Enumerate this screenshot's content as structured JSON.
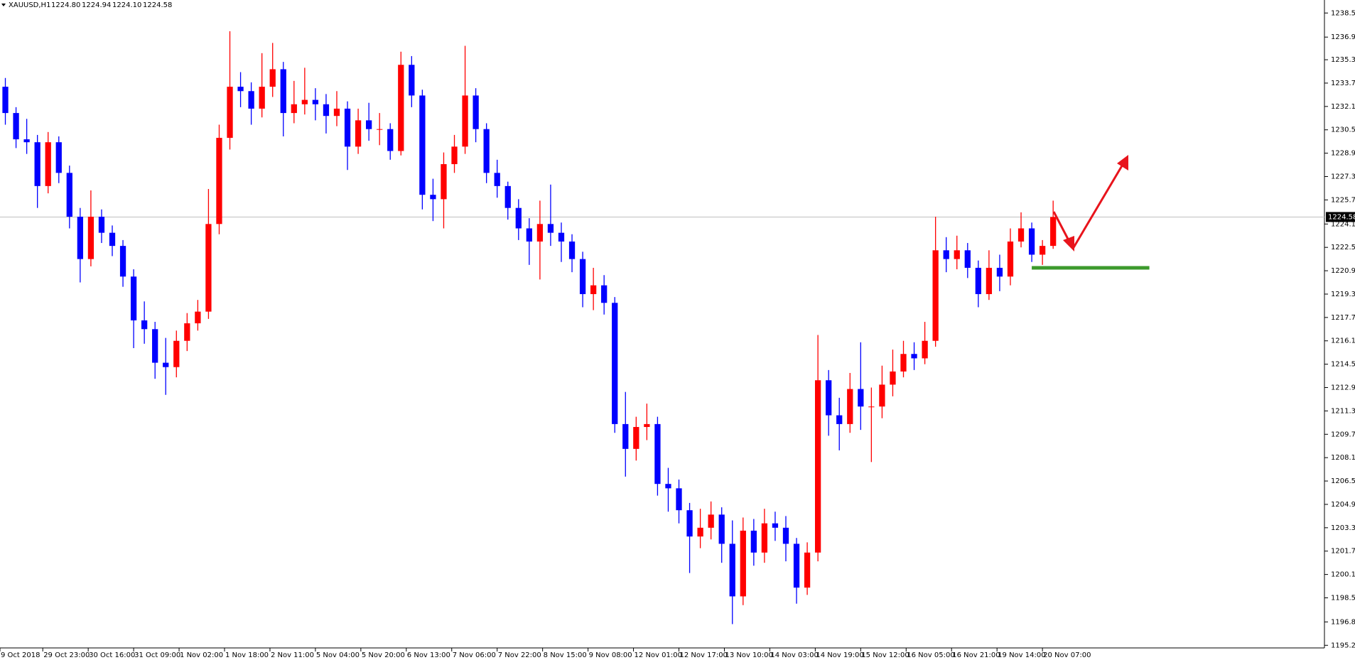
{
  "chart_data": {
    "type": "candlestick",
    "title": "XAUUSD,H1",
    "quote": [
      {
        "value": 1224.8,
        "label": "1224.80"
      },
      1224.94,
      {
        "value": 1224.1,
        "label": "1224.10"
      },
      1224.58
    ],
    "up_color": "#ff0000",
    "down_color": "#0000ff",
    "x": [
      2,
      6,
      10,
      14,
      18,
      22,
      26,
      30,
      34,
      38,
      42,
      46,
      50,
      54,
      58,
      62,
      66,
      70,
      74,
      78,
      82,
      86,
      90,
      94,
      98,
      102,
      106,
      110,
      114,
      118,
      122,
      126,
      130,
      134,
      138,
      142,
      146,
      150,
      154,
      158,
      162,
      166,
      170,
      174,
      178,
      182,
      186,
      190,
      194,
      198,
      202,
      206,
      210,
      214,
      218,
      222,
      226,
      230,
      234,
      238,
      242,
      246,
      250,
      254,
      258,
      262,
      266,
      270,
      274,
      278,
      282,
      286,
      290,
      294,
      298,
      302,
      306,
      310,
      314,
      318,
      322,
      326,
      330,
      334,
      338,
      342,
      346,
      350,
      354,
      358,
      362,
      366,
      370,
      374,
      378,
      382,
      386,
      390,
      394
    ],
    "open": [
      1233.5,
      1231.7,
      1229.9,
      1229.7,
      1226.7,
      1229.7,
      1227.6,
      1224.6,
      1221.7,
      1224.6,
      1223.5,
      1222.6,
      1220.5,
      1217.5,
      1216.9,
      1214.6,
      1214.3,
      1216.1,
      1217.3,
      1218.1,
      1224.1,
      1230.0,
      1233.5,
      1233.2,
      1232.0,
      1233.5,
      1234.7,
      1231.7,
      1232.3,
      1232.6,
      1232.3,
      1231.5,
      1232.0,
      1229.4,
      1231.2,
      1230.6,
      1230.6,
      1229.1,
      1235.0,
      1232.9,
      1226.1,
      1225.8,
      1228.2,
      1229.4,
      1232.9,
      1230.6,
      1227.6,
      1226.7,
      1225.2,
      1223.8,
      1222.9,
      1224.1,
      1223.5,
      1222.9,
      1221.7,
      1219.3,
      1219.9,
      1218.7,
      1210.4,
      1208.7,
      1210.2,
      1210.4,
      1206.3,
      1206.0,
      1204.5,
      1202.7,
      1203.3,
      1204.2,
      1202.2,
      1198.6,
      1203.1,
      1201.6,
      1203.6,
      1203.3,
      1202.2,
      1199.2,
      1201.6,
      1213.4,
      1211.0,
      1210.4,
      1212.8,
      1211.6,
      1211.6,
      1213.1,
      1214.0,
      1215.2,
      1214.9,
      1216.1,
      1222.3,
      1221.7,
      1222.3,
      1221.1,
      1219.3,
      1221.1,
      1220.5,
      1222.9,
      1223.8,
      1222.0,
      1222.6
    ],
    "high": [
      1234.1,
      1232.1,
      1231.3,
      1230.2,
      1230.4,
      1230.1,
      1228.1,
      1225.2,
      1226.4,
      1225.1,
      1224.0,
      1223.0,
      1221.0,
      1218.8,
      1217.4,
      1216.3,
      1216.8,
      1218.0,
      1218.9,
      1226.5,
      1230.9,
      1237.3,
      1234.5,
      1233.8,
      1235.8,
      1236.5,
      1235.2,
      1233.9,
      1234.8,
      1233.4,
      1233.0,
      1233.2,
      1232.5,
      1232.0,
      1232.4,
      1231.7,
      1231.0,
      1235.9,
      1235.6,
      1233.3,
      1227.2,
      1229.0,
      1230.2,
      1236.3,
      1233.4,
      1231.0,
      1228.5,
      1227.0,
      1225.8,
      1224.5,
      1225.7,
      1226.8,
      1224.2,
      1223.4,
      1222.2,
      1221.1,
      1220.6,
      1219.1,
      1212.6,
      1210.9,
      1211.8,
      1210.9,
      1207.4,
      1206.6,
      1205.0,
      1204.6,
      1205.1,
      1204.7,
      1203.8,
      1204.0,
      1203.9,
      1204.6,
      1204.4,
      1204.1,
      1202.6,
      1202.3,
      1216.5,
      1214.1,
      1212.2,
      1213.9,
      1216.0,
      1212.9,
      1214.4,
      1215.5,
      1216.1,
      1216.0,
      1217.4,
      1224.6,
      1223.2,
      1223.3,
      1222.8,
      1221.6,
      1222.3,
      1222.0,
      1223.8,
      1224.9,
      1224.2,
      1223.0,
      1225.7
    ],
    "low": [
      1230.9,
      1229.3,
      1228.9,
      1225.2,
      1226.2,
      1226.9,
      1223.8,
      1220.1,
      1221.2,
      1222.8,
      1221.9,
      1219.8,
      1215.6,
      1215.9,
      1213.5,
      1212.4,
      1213.6,
      1215.4,
      1216.8,
      1217.6,
      1223.4,
      1229.2,
      1232.1,
      1230.9,
      1231.4,
      1232.8,
      1230.1,
      1231.0,
      1231.6,
      1231.2,
      1230.3,
      1230.8,
      1227.8,
      1228.9,
      1229.8,
      1229.5,
      1228.5,
      1228.8,
      1232.1,
      1225.1,
      1224.3,
      1223.8,
      1227.6,
      1228.9,
      1229.7,
      1226.9,
      1225.9,
      1224.4,
      1223.0,
      1221.3,
      1220.3,
      1222.6,
      1221.5,
      1220.8,
      1218.4,
      1218.2,
      1217.9,
      1209.8,
      1206.8,
      1207.9,
      1209.3,
      1205.5,
      1204.4,
      1203.6,
      1200.2,
      1201.9,
      1202.5,
      1200.9,
      1196.7,
      1198.0,
      1200.7,
      1200.9,
      1202.4,
      1201.0,
      1198.1,
      1198.7,
      1201.0,
      1209.6,
      1208.6,
      1209.8,
      1210.0,
      1207.8,
      1210.8,
      1212.3,
      1213.6,
      1214.1,
      1214.5,
      1215.7,
      1220.8,
      1221.0,
      1220.4,
      1218.4,
      1218.9,
      1219.5,
      1219.9,
      1222.5,
      1221.5,
      1221.3,
      1222.4
    ],
    "close": [
      1231.7,
      1229.9,
      1229.7,
      1226.7,
      1229.7,
      1227.6,
      1224.6,
      1221.7,
      1224.6,
      1223.5,
      1222.6,
      1220.5,
      1217.5,
      1216.9,
      1214.6,
      1214.3,
      1216.1,
      1217.3,
      1218.1,
      1224.1,
      1230.0,
      1233.5,
      1233.2,
      1232.0,
      1233.5,
      1234.7,
      1231.7,
      1232.3,
      1232.6,
      1232.3,
      1231.5,
      1232.0,
      1229.4,
      1231.2,
      1230.6,
      1230.6,
      1229.1,
      1235.0,
      1232.9,
      1226.1,
      1225.8,
      1228.2,
      1229.4,
      1232.9,
      1230.6,
      1227.6,
      1226.7,
      1225.2,
      1223.8,
      1222.9,
      1224.1,
      1223.5,
      1222.9,
      1221.7,
      1219.3,
      1219.9,
      1218.7,
      1210.4,
      1208.7,
      1210.2,
      1210.4,
      1206.3,
      1206.0,
      1204.5,
      1202.7,
      1203.3,
      1204.2,
      1202.2,
      1198.6,
      1203.1,
      1201.6,
      1203.6,
      1203.3,
      1202.2,
      1199.2,
      1201.6,
      1213.4,
      1211.0,
      1210.4,
      1212.8,
      1211.6,
      1211.6,
      1213.1,
      1214.0,
      1215.2,
      1214.9,
      1216.1,
      1222.3,
      1221.7,
      1222.3,
      1221.1,
      1219.3,
      1221.1,
      1220.5,
      1222.9,
      1223.8,
      1222.0,
      1222.6,
      1224.58
    ],
    "xlim": [
      0,
      495.5
    ],
    "xticks": [
      {
        "value": 0,
        "label": "9 Oct 2018"
      },
      {
        "value": 16,
        "label": "29 Oct 23:00"
      },
      {
        "value": 33,
        "label": "30 Oct 16:00"
      },
      {
        "value": 50,
        "label": "31 Oct 09:00"
      },
      {
        "value": 67,
        "label": "1 Nov 02:00"
      },
      {
        "value": 84,
        "label": "1 Nov 18:00"
      },
      {
        "value": 101,
        "label": "2 Nov 11:00"
      },
      {
        "value": 118,
        "label": "5 Nov 04:00"
      },
      {
        "value": 135,
        "label": "5 Nov 20:00"
      },
      {
        "value": 152,
        "label": "6 Nov 13:00"
      },
      {
        "value": 169,
        "label": "7 Nov 06:00"
      },
      {
        "value": 186,
        "label": "7 Nov 22:00"
      },
      {
        "value": 203,
        "label": "8 Nov 15:00"
      },
      {
        "value": 220,
        "label": "9 Nov 08:00"
      },
      {
        "value": 237,
        "label": "12 Nov 01:00"
      },
      {
        "value": 254,
        "label": "12 Nov 17:00"
      },
      {
        "value": 271,
        "label": "13 Nov 10:00"
      },
      {
        "value": 288,
        "label": "14 Nov 03:00"
      },
      {
        "value": 305,
        "label": "14 Nov 19:00"
      },
      {
        "value": 322,
        "label": "15 Nov 12:00"
      },
      {
        "value": 339,
        "label": "16 Nov 05:00"
      },
      {
        "value": 356,
        "label": "16 Nov 21:00"
      },
      {
        "value": 373,
        "label": "19 Nov 14:00"
      },
      {
        "value": 390,
        "label": "20 Nov 07:00"
      }
    ],
    "ylim": [
      1195.07,
      1239.44
    ],
    "yticks": [
      1238.55,
      {
        "value": 1236.9,
        "label": "1236.90"
      },
      1235.35,
      1233.75,
      1232.15,
      1230.55,
      1228.95,
      1227.35,
      1225.75,
      {
        "value": 1224.1,
        "label": "1224.10"
      },
      {
        "value": 1222.5,
        "label": "1222.50"
      },
      {
        "value": 1220.9,
        "label": "1220.90"
      },
      {
        "value": 1219.3,
        "label": "1219.30"
      },
      {
        "value": 1217.7,
        "label": "1217.70"
      },
      {
        "value": 1216.1,
        "label": "1216.10"
      },
      {
        "value": 1214.5,
        "label": "1214.50"
      },
      {
        "value": 1212.9,
        "label": "1212.90"
      },
      {
        "value": 1211.3,
        "label": "1211.30"
      },
      {
        "value": 1209.7,
        "label": "1209.70"
      },
      {
        "value": 1208.1,
        "label": "1208.10"
      },
      {
        "value": 1206.5,
        "label": "1206.50"
      },
      {
        "value": 1204.9,
        "label": "1204.90"
      },
      {
        "value": 1203.3,
        "label": "1203.30"
      },
      {
        "value": 1201.7,
        "label": "1201.70"
      },
      {
        "value": 1200.1,
        "label": "1200.10"
      },
      {
        "value": 1198.5,
        "label": "1198.50"
      },
      1196.85,
      1195.25
    ],
    "last_price": 1224.58,
    "support": {
      "value": 1221.1,
      "x": [
        386,
        430
      ],
      "color": "#3c9a2c"
    }
  }
}
